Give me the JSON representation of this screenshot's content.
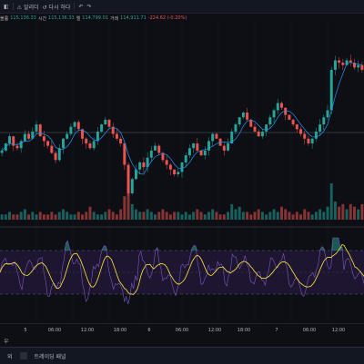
{
  "toolbar": {
    "items": [
      "◧",
      "⚠ 알리더",
      "↺ 다시 하다",
      "↶",
      "↷"
    ]
  },
  "legend": {
    "label": "볼륨",
    "open": "115,136.33",
    "time_label": "시간",
    "high": "115,136.33",
    "low_label": "엘",
    "low": "114,799.01",
    "close_label": "거래",
    "close": "114,911.71",
    "change": "-224.62 (-0.20%)"
  },
  "time_axis": {
    "ticks": [
      {
        "label": "5",
        "pos": 0.07
      },
      {
        "label": "06:00",
        "pos": 0.15
      },
      {
        "label": "12:00",
        "pos": 0.24
      },
      {
        "label": "18:00",
        "pos": 0.33
      },
      {
        "label": "6",
        "pos": 0.41
      },
      {
        "label": "06:00",
        "pos": 0.5
      },
      {
        "label": "12:00",
        "pos": 0.59
      },
      {
        "label": "18:00",
        "pos": 0.67
      },
      {
        "label": "7",
        "pos": 0.76
      },
      {
        "label": "06:00",
        "pos": 0.85
      },
      {
        "label": "12:00",
        "pos": 0.93
      }
    ]
  },
  "utc_row": {
    "left": "우"
  },
  "tabs": {
    "items": [
      "외",
      "트레이딩 패널"
    ]
  },
  "colors": {
    "up": "#26a69a",
    "down": "#ef5350",
    "ma": "#2196f3",
    "osc_fast": "#7e57c2",
    "osc_slow": "#ffeb3b",
    "background": "#0d0f14"
  },
  "chart_data": {
    "type": "candlestick",
    "x_ticks": [
      "5",
      "06:00",
      "12:00",
      "18:00",
      "6",
      "06:00",
      "12:00",
      "18:00",
      "7",
      "06:00",
      "12:00"
    ],
    "price_series_approx": [
      112.8,
      113.1,
      113.4,
      113.0,
      112.9,
      113.2,
      113.5,
      113.3,
      113.6,
      113.9,
      113.4,
      113.2,
      113.0,
      112.7,
      112.4,
      112.9,
      113.3,
      113.5,
      113.8,
      114.0,
      113.7,
      113.3,
      113.1,
      112.9,
      113.2,
      113.6,
      113.9,
      114.1,
      113.8,
      113.5,
      113.3,
      113.1,
      112.2,
      111.0,
      111.6,
      112.0,
      112.3,
      112.1,
      112.5,
      112.8,
      113.0,
      112.7,
      112.4,
      112.2,
      112.0,
      111.8,
      111.9,
      112.3,
      112.6,
      112.9,
      113.1,
      112.8,
      112.6,
      112.8,
      113.2,
      113.5,
      113.3,
      113.0,
      112.8,
      113.1,
      113.6,
      113.9,
      114.2,
      114.4,
      114.1,
      113.8,
      113.6,
      113.4,
      113.6,
      113.9,
      114.2,
      114.5,
      114.8,
      114.6,
      114.3,
      114.1,
      113.9,
      113.7,
      113.5,
      113.3,
      113.1,
      113.3,
      113.6,
      113.9,
      114.2,
      114.5,
      116.2,
      116.6,
      116.5,
      116.4,
      116.6,
      116.5,
      116.3,
      116.4,
      116.2
    ],
    "volume_approx": [
      2,
      2,
      3,
      2,
      2,
      3,
      4,
      2,
      3,
      2,
      3,
      2,
      2,
      3,
      2,
      3,
      4,
      3,
      2,
      2,
      3,
      2,
      3,
      5,
      3,
      2,
      2,
      3,
      4,
      3,
      2,
      4,
      9,
      14,
      6,
      4,
      3,
      3,
      4,
      3,
      2,
      3,
      4,
      3,
      2,
      3,
      3,
      2,
      3,
      2,
      3,
      4,
      3,
      2,
      3,
      4,
      3,
      2,
      2,
      3,
      6,
      4,
      5,
      3,
      3,
      2,
      3,
      4,
      3,
      2,
      3,
      4,
      3,
      5,
      4,
      3,
      2,
      3,
      2,
      4,
      3,
      2,
      3,
      4,
      3,
      5,
      14,
      7,
      5,
      6,
      4,
      6,
      5,
      4,
      6
    ]
  }
}
